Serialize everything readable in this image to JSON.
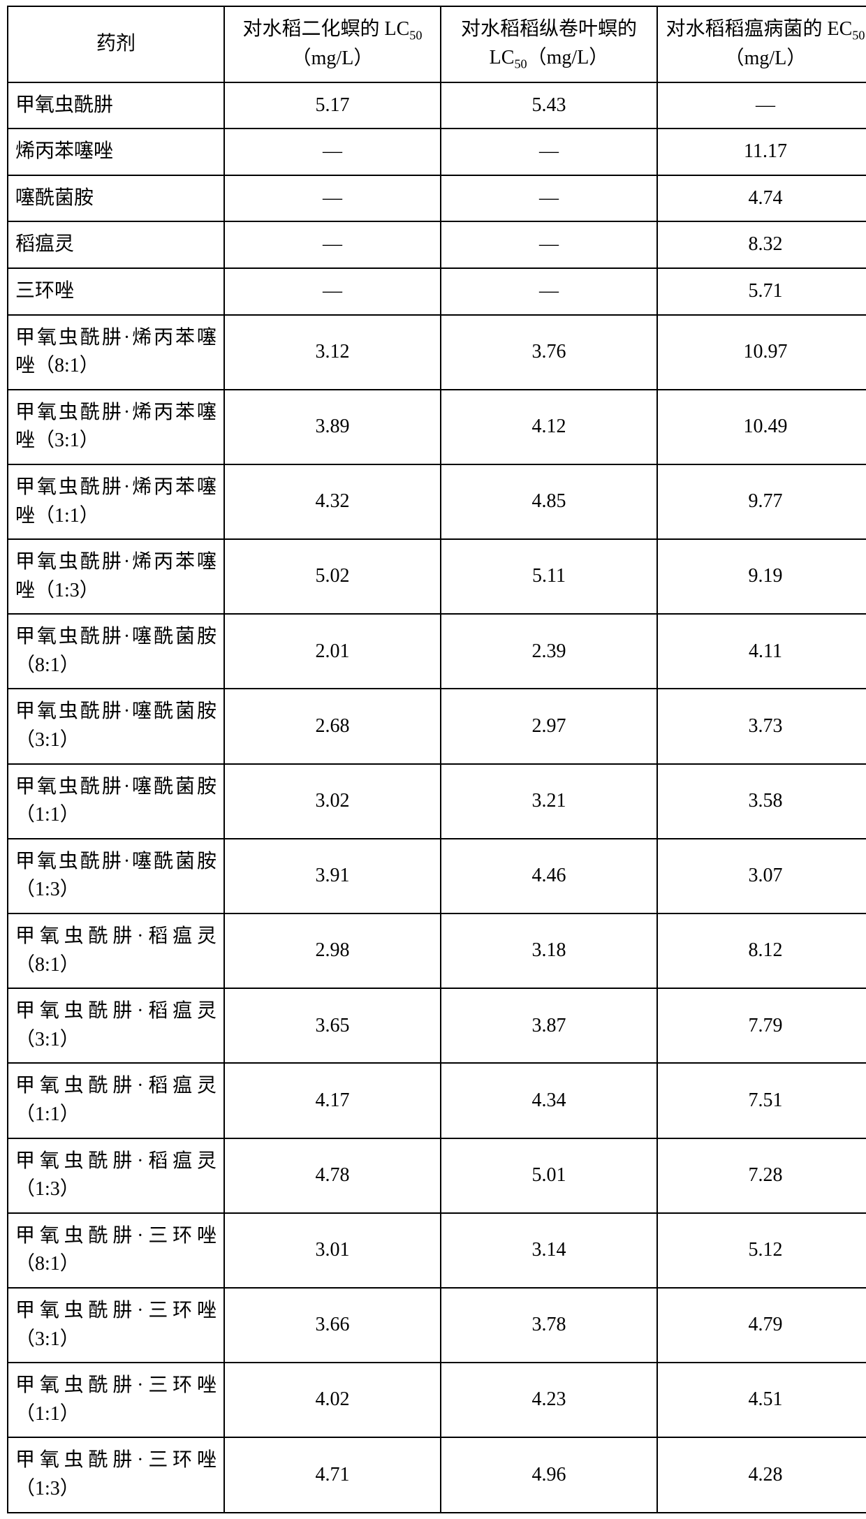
{
  "table": {
    "columns": [
      {
        "label_html": "药剂"
      },
      {
        "prefix": "对水稻二化螟的 LC",
        "sub": "50",
        "suffix": "（mg/L）"
      },
      {
        "prefix": "对水稻稻纵卷叶螟的 LC",
        "sub": "50",
        "suffix": "（mg/L）"
      },
      {
        "prefix": "对水稻稻瘟病菌的 EC",
        "sub": "50",
        "suffix": "（mg/L）"
      }
    ],
    "rows": [
      {
        "label": "甲氧虫酰肼",
        "v1": "5.17",
        "v2": "5.43",
        "v3": "—"
      },
      {
        "label": "烯丙苯噻唑",
        "v1": "—",
        "v2": "—",
        "v3": "11.17"
      },
      {
        "label": "噻酰菌胺",
        "v1": "—",
        "v2": "—",
        "v3": "4.74"
      },
      {
        "label": "稻瘟灵",
        "v1": "—",
        "v2": "—",
        "v3": "8.32"
      },
      {
        "label": "三环唑",
        "v1": "—",
        "v2": "—",
        "v3": "5.71"
      },
      {
        "label": "甲氧虫酰肼·烯丙苯噻唑（8:1）",
        "v1": "3.12",
        "v2": "3.76",
        "v3": "10.97"
      },
      {
        "label": "甲氧虫酰肼·烯丙苯噻唑（3:1）",
        "v1": "3.89",
        "v2": "4.12",
        "v3": "10.49"
      },
      {
        "label": "甲氧虫酰肼·烯丙苯噻唑（1:1）",
        "v1": "4.32",
        "v2": "4.85",
        "v3": "9.77"
      },
      {
        "label": "甲氧虫酰肼·烯丙苯噻唑（1:3）",
        "v1": "5.02",
        "v2": "5.11",
        "v3": "9.19"
      },
      {
        "label": "甲氧虫酰肼·噻酰菌胺（8:1）",
        "v1": "2.01",
        "v2": "2.39",
        "v3": "4.11"
      },
      {
        "label": "甲氧虫酰肼·噻酰菌胺（3:1）",
        "v1": "2.68",
        "v2": "2.97",
        "v3": "3.73"
      },
      {
        "label": "甲氧虫酰肼·噻酰菌胺（1:1）",
        "v1": "3.02",
        "v2": "3.21",
        "v3": "3.58"
      },
      {
        "label": "甲氧虫酰肼·噻酰菌胺（1:3）",
        "v1": "3.91",
        "v2": "4.46",
        "v3": "3.07"
      },
      {
        "label": "甲氧虫酰肼·稻瘟灵（8:1）",
        "v1": "2.98",
        "v2": "3.18",
        "v3": "8.12"
      },
      {
        "label": "甲氧虫酰肼·稻瘟灵（3:1）",
        "v1": "3.65",
        "v2": "3.87",
        "v3": "7.79"
      },
      {
        "label": "甲氧虫酰肼·稻瘟灵（1:1）",
        "v1": "4.17",
        "v2": "4.34",
        "v3": "7.51"
      },
      {
        "label": "甲氧虫酰肼·稻瘟灵（1:3）",
        "v1": "4.78",
        "v2": "5.01",
        "v3": "7.28"
      },
      {
        "label": "甲氧虫酰肼·三环唑（8:1）",
        "v1": "3.01",
        "v2": "3.14",
        "v3": "5.12"
      },
      {
        "label": "甲氧虫酰肼·三环唑（3:1）",
        "v1": "3.66",
        "v2": "3.78",
        "v3": "4.79"
      },
      {
        "label": "甲氧虫酰肼·三环唑（1:1）",
        "v1": "4.02",
        "v2": "4.23",
        "v3": "4.51"
      },
      {
        "label": "甲氧虫酰肼·三环唑（1:3）",
        "v1": "4.71",
        "v2": "4.96",
        "v3": "4.28"
      }
    ]
  }
}
